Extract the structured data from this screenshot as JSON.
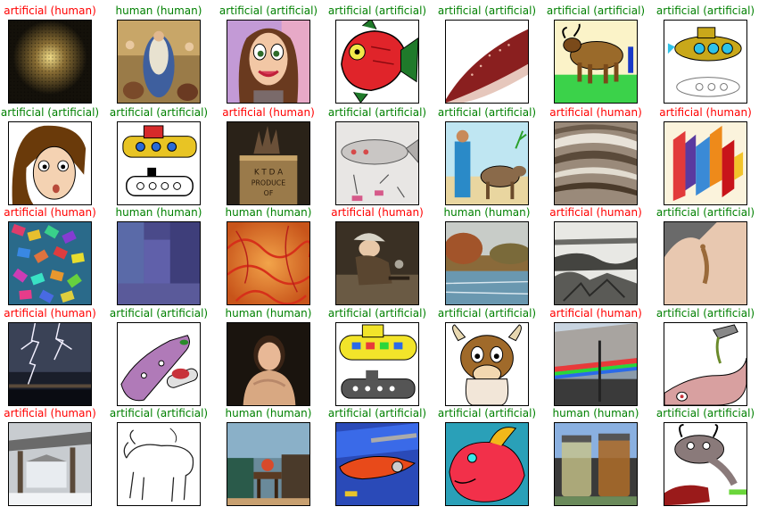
{
  "colors": {
    "correct": "#008000",
    "incorrect": "#ff0000"
  },
  "grid": [
    [
      {
        "label": "artificial (human)",
        "correct": false,
        "image": "glowing-dot-texture-image"
      },
      {
        "label": "human (human)",
        "correct": true,
        "image": "religious-painting-image"
      },
      {
        "label": "artificial (artificial)",
        "correct": true,
        "image": "cartoon-woman-image"
      },
      {
        "label": "artificial (artificial)",
        "correct": true,
        "image": "cartoon-red-fish-image"
      },
      {
        "label": "artificial (artificial)",
        "correct": true,
        "image": "sausage-closeup-image"
      },
      {
        "label": "artificial (artificial)",
        "correct": true,
        "image": "cartoon-buffalo-image"
      },
      {
        "label": "artificial (artificial)",
        "correct": true,
        "image": "yellow-submarine-image"
      }
    ],
    [
      {
        "label": "artificial (artificial)",
        "correct": true,
        "image": "cartoon-girl-face-image"
      },
      {
        "label": "artificial (artificial)",
        "correct": true,
        "image": "submarine-sketch-image"
      },
      {
        "label": "artificial (human)",
        "correct": false,
        "image": "sculpture-box-image"
      },
      {
        "label": "artificial (artificial)",
        "correct": true,
        "image": "fish-sketch-image"
      },
      {
        "label": "artificial (artificial)",
        "correct": true,
        "image": "woman-and-buffalo-image"
      },
      {
        "label": "artificial (human)",
        "correct": false,
        "image": "rice-terraces-image"
      },
      {
        "label": "artificial (human)",
        "correct": false,
        "image": "colored-bars-image"
      }
    ],
    [
      {
        "label": "artificial (human)",
        "correct": false,
        "image": "mosaic-painting-image"
      },
      {
        "label": "human (human)",
        "correct": true,
        "image": "blue-abstract-painting-image"
      },
      {
        "label": "human (human)",
        "correct": true,
        "image": "orange-texture-painting-image"
      },
      {
        "label": "artificial (human)",
        "correct": false,
        "image": "man-portrait-painting-image"
      },
      {
        "label": "human (human)",
        "correct": true,
        "image": "lake-landscape-painting-image"
      },
      {
        "label": "artificial (human)",
        "correct": false,
        "image": "ink-landscape-image"
      },
      {
        "label": "artificial (artificial)",
        "correct": true,
        "image": "hand-holding-shrimp-image"
      }
    ],
    [
      {
        "label": "artificial (human)",
        "correct": false,
        "image": "lightning-storm-image"
      },
      {
        "label": "artificial (artificial)",
        "correct": true,
        "image": "purple-fish-sketch-image"
      },
      {
        "label": "human (human)",
        "correct": true,
        "image": "renaissance-portrait-image"
      },
      {
        "label": "artificial (artificial)",
        "correct": true,
        "image": "yellow-submarine-drawing-image"
      },
      {
        "label": "artificial (artificial)",
        "correct": true,
        "image": "cartoon-cow-image"
      },
      {
        "label": "artificial (human)",
        "correct": false,
        "image": "rainbow-pavilion-image"
      },
      {
        "label": "artificial (artificial)",
        "correct": true,
        "image": "sausage-drawing-image"
      }
    ],
    [
      {
        "label": "artificial (human)",
        "correct": false,
        "image": "snowy-temple-image"
      },
      {
        "label": "artificial (artificial)",
        "correct": true,
        "image": "buffalo-line-drawing-image"
      },
      {
        "label": "human (human)",
        "correct": true,
        "image": "interior-still-life-painting-image"
      },
      {
        "label": "artificial (artificial)",
        "correct": true,
        "image": "fish-painting-image"
      },
      {
        "label": "artificial (artificial)",
        "correct": true,
        "image": "cartoon-pink-fish-image"
      },
      {
        "label": "human (human)",
        "correct": true,
        "image": "pickle-jars-image"
      },
      {
        "label": "artificial (artificial)",
        "correct": true,
        "image": "cartoon-buffalo-sausage-image"
      }
    ]
  ]
}
